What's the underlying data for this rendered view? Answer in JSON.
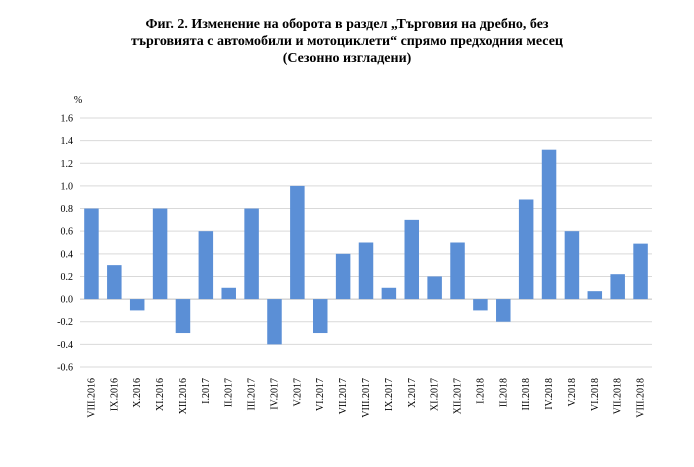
{
  "chart_data": {
    "type": "bar",
    "title": "Фиг. 2. Изменение на оборота в раздел „Търговия на дребно, без търговията с автомобили и мотоциклети“ спрямо предходния месец (Сезонно изгладени)",
    "title_lines": [
      "Фиг. 2. Изменение на оборота в раздел „Търговия на дребно, без",
      "търговията с автомобили и мотоциклети“ спрямо предходния месец",
      "(Сезонно изгладени)"
    ],
    "ylabel": "%",
    "xlabel": "",
    "ylim": [
      -0.6,
      1.6
    ],
    "yticks": [
      "1.6",
      "1.4",
      "1.2",
      "1.0",
      "0.8",
      "0.6",
      "0.4",
      "0.2",
      "0.0",
      "-0.2",
      "-0.4",
      "-0.6"
    ],
    "grid": true,
    "bar_color": "#5b8fd6",
    "categories": [
      "VIII.2016",
      "IX.2016",
      "X.2016",
      "XI.2016",
      "XII.2016",
      "I.2017",
      "II.2017",
      "III.2017",
      "IV.2017",
      "V.2017",
      "VI.2017",
      "VII.2017",
      "VIII.2017",
      "IX.2017",
      "X.2017",
      "XI.2017",
      "XII.2017",
      "I.2018",
      "II.2018",
      "III.2018",
      "IV.2018",
      "V.2018",
      "VI.2018",
      "VII.2018",
      "VIII.2018"
    ],
    "values": [
      0.8,
      0.3,
      -0.1,
      0.8,
      -0.3,
      0.6,
      0.1,
      0.8,
      -0.4,
      1.0,
      -0.3,
      0.4,
      0.5,
      0.1,
      0.7,
      0.2,
      0.5,
      -0.1,
      -0.2,
      0.88,
      1.32,
      0.6,
      0.07,
      0.22,
      0.49
    ]
  }
}
